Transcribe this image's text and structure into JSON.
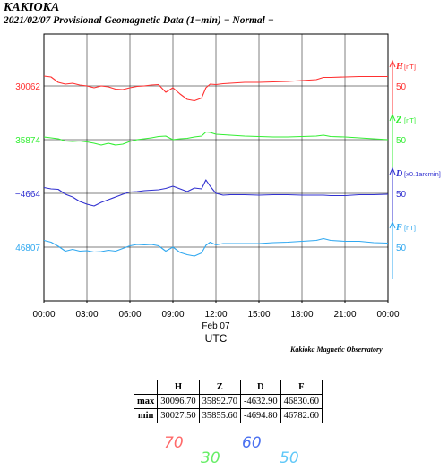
{
  "header": {
    "title": "KAKIOKA",
    "subtitle": "2021/02/07  Provisional Geomagnetic Data (1−min)  − Normal −"
  },
  "credit": "Kakioka Magnetic Observatory",
  "chart_data": {
    "type": "line",
    "xlabel": "UTC",
    "date_label": "Feb 07",
    "x_ticks": [
      "00:00",
      "03:00",
      "06:00",
      "09:00",
      "12:00",
      "15:00",
      "18:00",
      "21:00",
      "00:00"
    ],
    "grid": true,
    "series": [
      {
        "name": "H",
        "unit": "[nT]",
        "color": "#ff3030",
        "scale": "50",
        "left_label": "30062",
        "x": [
          0,
          0.5,
          1,
          1.5,
          2,
          2.5,
          3,
          3.5,
          4,
          4.5,
          5,
          5.5,
          6,
          6.5,
          7,
          7.5,
          8,
          8.5,
          9,
          9.5,
          10,
          10.5,
          11,
          11.3,
          11.6,
          12,
          12.5,
          13,
          14,
          15,
          16,
          17,
          18,
          19,
          19.5,
          20,
          21,
          22,
          23,
          24
        ],
        "y": [
          30084,
          30082,
          30070,
          30066,
          30068,
          30064,
          30062,
          30058,
          30062,
          30060,
          30055,
          30054,
          30058,
          30061,
          30062,
          30064,
          30065,
          30048,
          30058,
          30044,
          30032,
          30029,
          30035,
          30058,
          30066,
          30065,
          30067,
          30068,
          30070,
          30070,
          30071,
          30072,
          30074,
          30076,
          30081,
          30081,
          30082,
          30083,
          30083,
          30083
        ]
      },
      {
        "name": "Z",
        "unit": "[nT]",
        "color": "#33ee33",
        "scale": "50",
        "left_label": "35874",
        "x": [
          0,
          0.5,
          1,
          1.5,
          2,
          2.5,
          3,
          3.5,
          4,
          4.5,
          5,
          5.5,
          6,
          6.5,
          7,
          7.5,
          8,
          8.5,
          9,
          9.5,
          10,
          10.5,
          11,
          11.3,
          11.6,
          12,
          12.5,
          13,
          14,
          15,
          16,
          17,
          18,
          19,
          19.5,
          20,
          21,
          22,
          23,
          24
        ],
        "y": [
          35880,
          35878,
          35876,
          35871,
          35870,
          35871,
          35869,
          35866,
          35862,
          35866,
          35862,
          35864,
          35870,
          35874,
          35876,
          35878,
          35881,
          35882,
          35874,
          35876,
          35877,
          35880,
          35882,
          35891,
          35890,
          35886,
          35885,
          35884,
          35882,
          35881,
          35880,
          35880,
          35881,
          35882,
          35884,
          35881,
          35880,
          35878,
          35876,
          35874
        ]
      },
      {
        "name": "D",
        "unit": "[x0.1arcmin]",
        "color": "#3030d0",
        "scale": "50",
        "left_label": "−4664",
        "x": [
          0,
          0.5,
          1,
          1.5,
          2,
          2.5,
          3,
          3.5,
          4,
          4.5,
          5,
          5.5,
          6,
          6.5,
          7,
          7.5,
          8,
          8.5,
          9,
          9.5,
          10,
          10.5,
          11,
          11.3,
          11.6,
          12,
          12.5,
          13,
          14,
          15,
          16,
          17,
          18,
          19,
          19.5,
          20,
          21,
          22,
          23,
          24
        ],
        "y": [
          -4651,
          -4654,
          -4655,
          -4666,
          -4672,
          -4682,
          -4688,
          -4692,
          -4684,
          -4678,
          -4672,
          -4666,
          -4661,
          -4660,
          -4658,
          -4657,
          -4656,
          -4653,
          -4648,
          -4654,
          -4660,
          -4652,
          -4654,
          -4634,
          -4648,
          -4664,
          -4668,
          -4667,
          -4667,
          -4668,
          -4667,
          -4667,
          -4668,
          -4668,
          -4668,
          -4669,
          -4669,
          -4667,
          -4667,
          -4666
        ]
      },
      {
        "name": "F",
        "unit": "[nT]",
        "color": "#30a8f0",
        "scale": "50",
        "left_label": "46807",
        "x": [
          0,
          0.5,
          1,
          1.5,
          2,
          2.5,
          3,
          3.5,
          4,
          4.5,
          5,
          5.5,
          6,
          6.5,
          7,
          7.5,
          8,
          8.5,
          9,
          9.5,
          10,
          10.5,
          11,
          11.3,
          11.6,
          12,
          12.5,
          13,
          14,
          15,
          16,
          17,
          18,
          19,
          19.5,
          20,
          21,
          22,
          23,
          24
        ],
        "y": [
          46822,
          46818,
          46809,
          46798,
          46802,
          46798,
          46799,
          46796,
          46797,
          46800,
          46798,
          46804,
          46810,
          46813,
          46812,
          46813,
          46810,
          46798,
          46807,
          46795,
          46790,
          46787,
          46794,
          46811,
          46818,
          46812,
          46815,
          46815,
          46815,
          46815,
          46817,
          46818,
          46820,
          46822,
          46826,
          46822,
          46820,
          46820,
          46817,
          46816
        ]
      }
    ]
  },
  "stats_table": {
    "headers": [
      "",
      "H",
      "Z",
      "D",
      "F"
    ],
    "rows": [
      [
        "max",
        "30096.70",
        "35892.70",
        "-4632.90",
        "46830.60"
      ],
      [
        "min",
        "30027.50",
        "35855.60",
        "-4694.80",
        "46782.60"
      ]
    ]
  },
  "scale_labels": [
    {
      "text": "70",
      "color": "#ff6a6a"
    },
    {
      "text": "30",
      "color": "#66ee66"
    },
    {
      "text": "60",
      "color": "#4a70f0"
    },
    {
      "text": "50",
      "color": "#60c8f8"
    }
  ]
}
